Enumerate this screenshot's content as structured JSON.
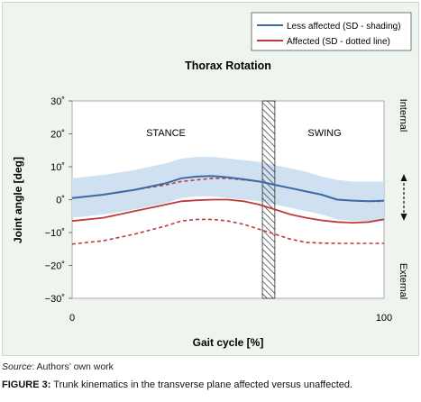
{
  "chart_data": {
    "type": "line",
    "title": "Thorax Rotation",
    "xlabel": "Gait cycle [%]",
    "ylabel": "Joint angle [deg]",
    "xlim": [
      0,
      100
    ],
    "ylim": [
      -30,
      30
    ],
    "x_ticks": [
      "0",
      "100"
    ],
    "y_ticks": [
      "30˚",
      "20˚",
      "10˚",
      "0˚",
      "−10˚",
      "−20˚",
      "−30˚"
    ],
    "y_tick_values": [
      30,
      20,
      10,
      0,
      -10,
      -20,
      -30
    ],
    "phase_labels": [
      "STANCE",
      "SWING"
    ],
    "phase_boundary": [
      61,
      65
    ],
    "side_labels": {
      "top": "Internal",
      "bottom": "External"
    },
    "grid": false,
    "legend_position": "top-right",
    "series": [
      {
        "name": "Less affected (SD - shading)",
        "color": "#3b6aa6",
        "x": [
          0,
          10,
          20,
          30,
          35,
          40,
          45,
          50,
          55,
          60,
          65,
          70,
          75,
          80,
          85,
          90,
          95,
          100
        ],
        "mean": [
          0.5,
          1.5,
          3.0,
          5.0,
          6.5,
          7.0,
          7.2,
          6.8,
          6.2,
          5.5,
          4.5,
          3.5,
          2.5,
          1.5,
          0,
          -0.3,
          -0.5,
          -0.3
        ],
        "sd_upper": [
          6.5,
          7.5,
          9.0,
          11.0,
          12.5,
          13.0,
          13.0,
          12.5,
          12.0,
          11.5,
          10.5,
          9.5,
          8.5,
          7.0,
          6.0,
          5.5,
          5.5,
          5.5
        ],
        "sd_lower": [
          -5.5,
          -4.5,
          -3.0,
          -1.0,
          0.5,
          1.0,
          1.0,
          0.5,
          0,
          -0.5,
          -1.5,
          -2.5,
          -3.5,
          -4.5,
          -6.0,
          -6.5,
          -6.5,
          -6.5
        ]
      },
      {
        "name": "Affected (SD - dotted line)",
        "color": "#c0393b",
        "x": [
          0,
          10,
          20,
          30,
          35,
          40,
          45,
          50,
          55,
          60,
          65,
          70,
          75,
          80,
          85,
          90,
          95,
          100
        ],
        "mean": [
          -6.5,
          -5.5,
          -3.5,
          -1.5,
          -0.5,
          -0.2,
          0,
          0,
          -0.5,
          -1.5,
          -3.0,
          -4.5,
          -5.5,
          -6.3,
          -6.8,
          -7.0,
          -6.8,
          -6.0
        ],
        "sd_upper": [
          0.5,
          1.5,
          3.0,
          4.5,
          5.5,
          6.0,
          6.5,
          6.5,
          6.0,
          5.5,
          4.5,
          3.5,
          2.5,
          1.5,
          0,
          -0.3,
          -0.5,
          -0.5
        ],
        "sd_lower": [
          -13.5,
          -12.5,
          -10.5,
          -8.0,
          -6.5,
          -6.0,
          -6.0,
          -6.5,
          -7.5,
          -9.0,
          -10.5,
          -12.0,
          -13.0,
          -13.2,
          -13.3,
          -13.3,
          -13.3,
          -13.3
        ]
      }
    ]
  },
  "source": {
    "label": "Source",
    "text": ": Authors’ own work"
  },
  "caption": {
    "label": "FIGURE 3:",
    "text": " Trunk kinematics in the transverse plane affected versus unaffected."
  },
  "colors": {
    "panel": "#eef4ee",
    "plot_bg": "#ffffff",
    "shading": "#cfe0f1"
  }
}
